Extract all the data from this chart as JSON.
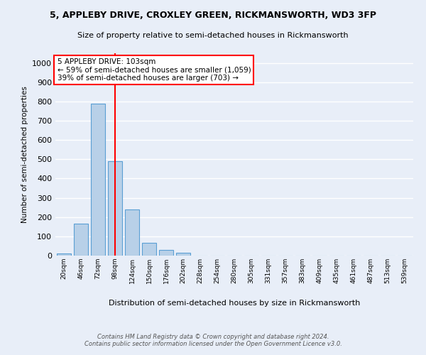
{
  "title1": "5, APPLEBY DRIVE, CROXLEY GREEN, RICKMANSWORTH, WD3 3FP",
  "title2": "Size of property relative to semi-detached houses in Rickmansworth",
  "xlabel": "Distribution of semi-detached houses by size in Rickmansworth",
  "ylabel": "Number of semi-detached properties",
  "bar_values": [
    11,
    165,
    787,
    490,
    238,
    65,
    30,
    15,
    0,
    0,
    0,
    0,
    0,
    0,
    0,
    0,
    0,
    0,
    0,
    0,
    0
  ],
  "bar_labels": [
    "20sqm",
    "46sqm",
    "72sqm",
    "98sqm",
    "124sqm",
    "150sqm",
    "176sqm",
    "202sqm",
    "228sqm",
    "254sqm",
    "280sqm",
    "305sqm",
    "331sqm",
    "357sqm",
    "383sqm",
    "409sqm",
    "435sqm",
    "461sqm",
    "487sqm",
    "513sqm",
    "539sqm"
  ],
  "bar_color": "#b8d0e8",
  "bar_edge_color": "#5a9fd4",
  "annotation_box_text": "5 APPLEBY DRIVE: 103sqm\n← 59% of semi-detached houses are smaller (1,059)\n39% of semi-detached houses are larger (703) →",
  "vline_x": 3.0,
  "vline_color": "red",
  "ylim": [
    0,
    1050
  ],
  "yticks": [
    0,
    100,
    200,
    300,
    400,
    500,
    600,
    700,
    800,
    900,
    1000
  ],
  "footer1": "Contains HM Land Registry data © Crown copyright and database right 2024.",
  "footer2": "Contains public sector information licensed under the Open Government Licence v3.0.",
  "background_color": "#e8eef8",
  "grid_color": "#ffffff",
  "annotation_box_color": "#ffffff",
  "annotation_box_edge_color": "red"
}
